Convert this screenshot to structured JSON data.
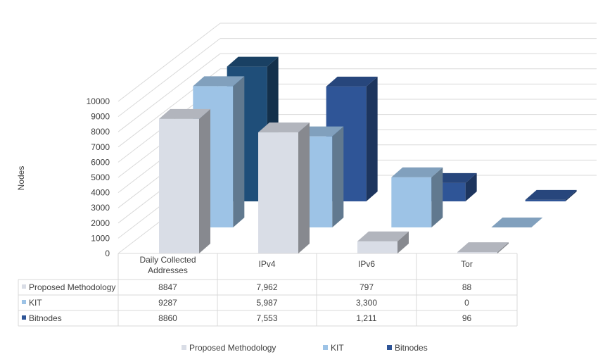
{
  "chart_data": {
    "type": "bar",
    "style": "3d-clustered-column-with-data-table",
    "ylabel": "Nodes",
    "ylim": [
      0,
      10000
    ],
    "ytick_step": 1000,
    "grid": true,
    "legend_position": "bottom",
    "categories": [
      "Daily Collected Addresses",
      "IPv4",
      "IPv6",
      "Tor"
    ],
    "category_lines": [
      [
        "Daily Collected",
        "Addresses"
      ],
      [
        "IPv4"
      ],
      [
        "IPv6"
      ],
      [
        "Tor"
      ]
    ],
    "series": [
      {
        "name": "Proposed Methodology",
        "values": [
          8847,
          7962,
          797,
          88
        ],
        "table_labels": [
          "8847",
          "7,962",
          "797",
          "88"
        ],
        "color": "#D9DDE6"
      },
      {
        "name": "KIT",
        "values": [
          9287,
          5987,
          3300,
          0
        ],
        "table_labels": [
          "9287",
          "5,987",
          "3,300",
          "0"
        ],
        "color": "#9DC3E6"
      },
      {
        "name": "Bitnodes",
        "values": [
          8860,
          7553,
          1211,
          96
        ],
        "table_labels": [
          "8860",
          "7,553",
          "1,211",
          "96"
        ],
        "color": "#2F5597"
      }
    ],
    "bitnodes_category_colors": [
      "#1F4E79",
      "#2F5597",
      "#2F5597",
      "#2F5597"
    ]
  }
}
